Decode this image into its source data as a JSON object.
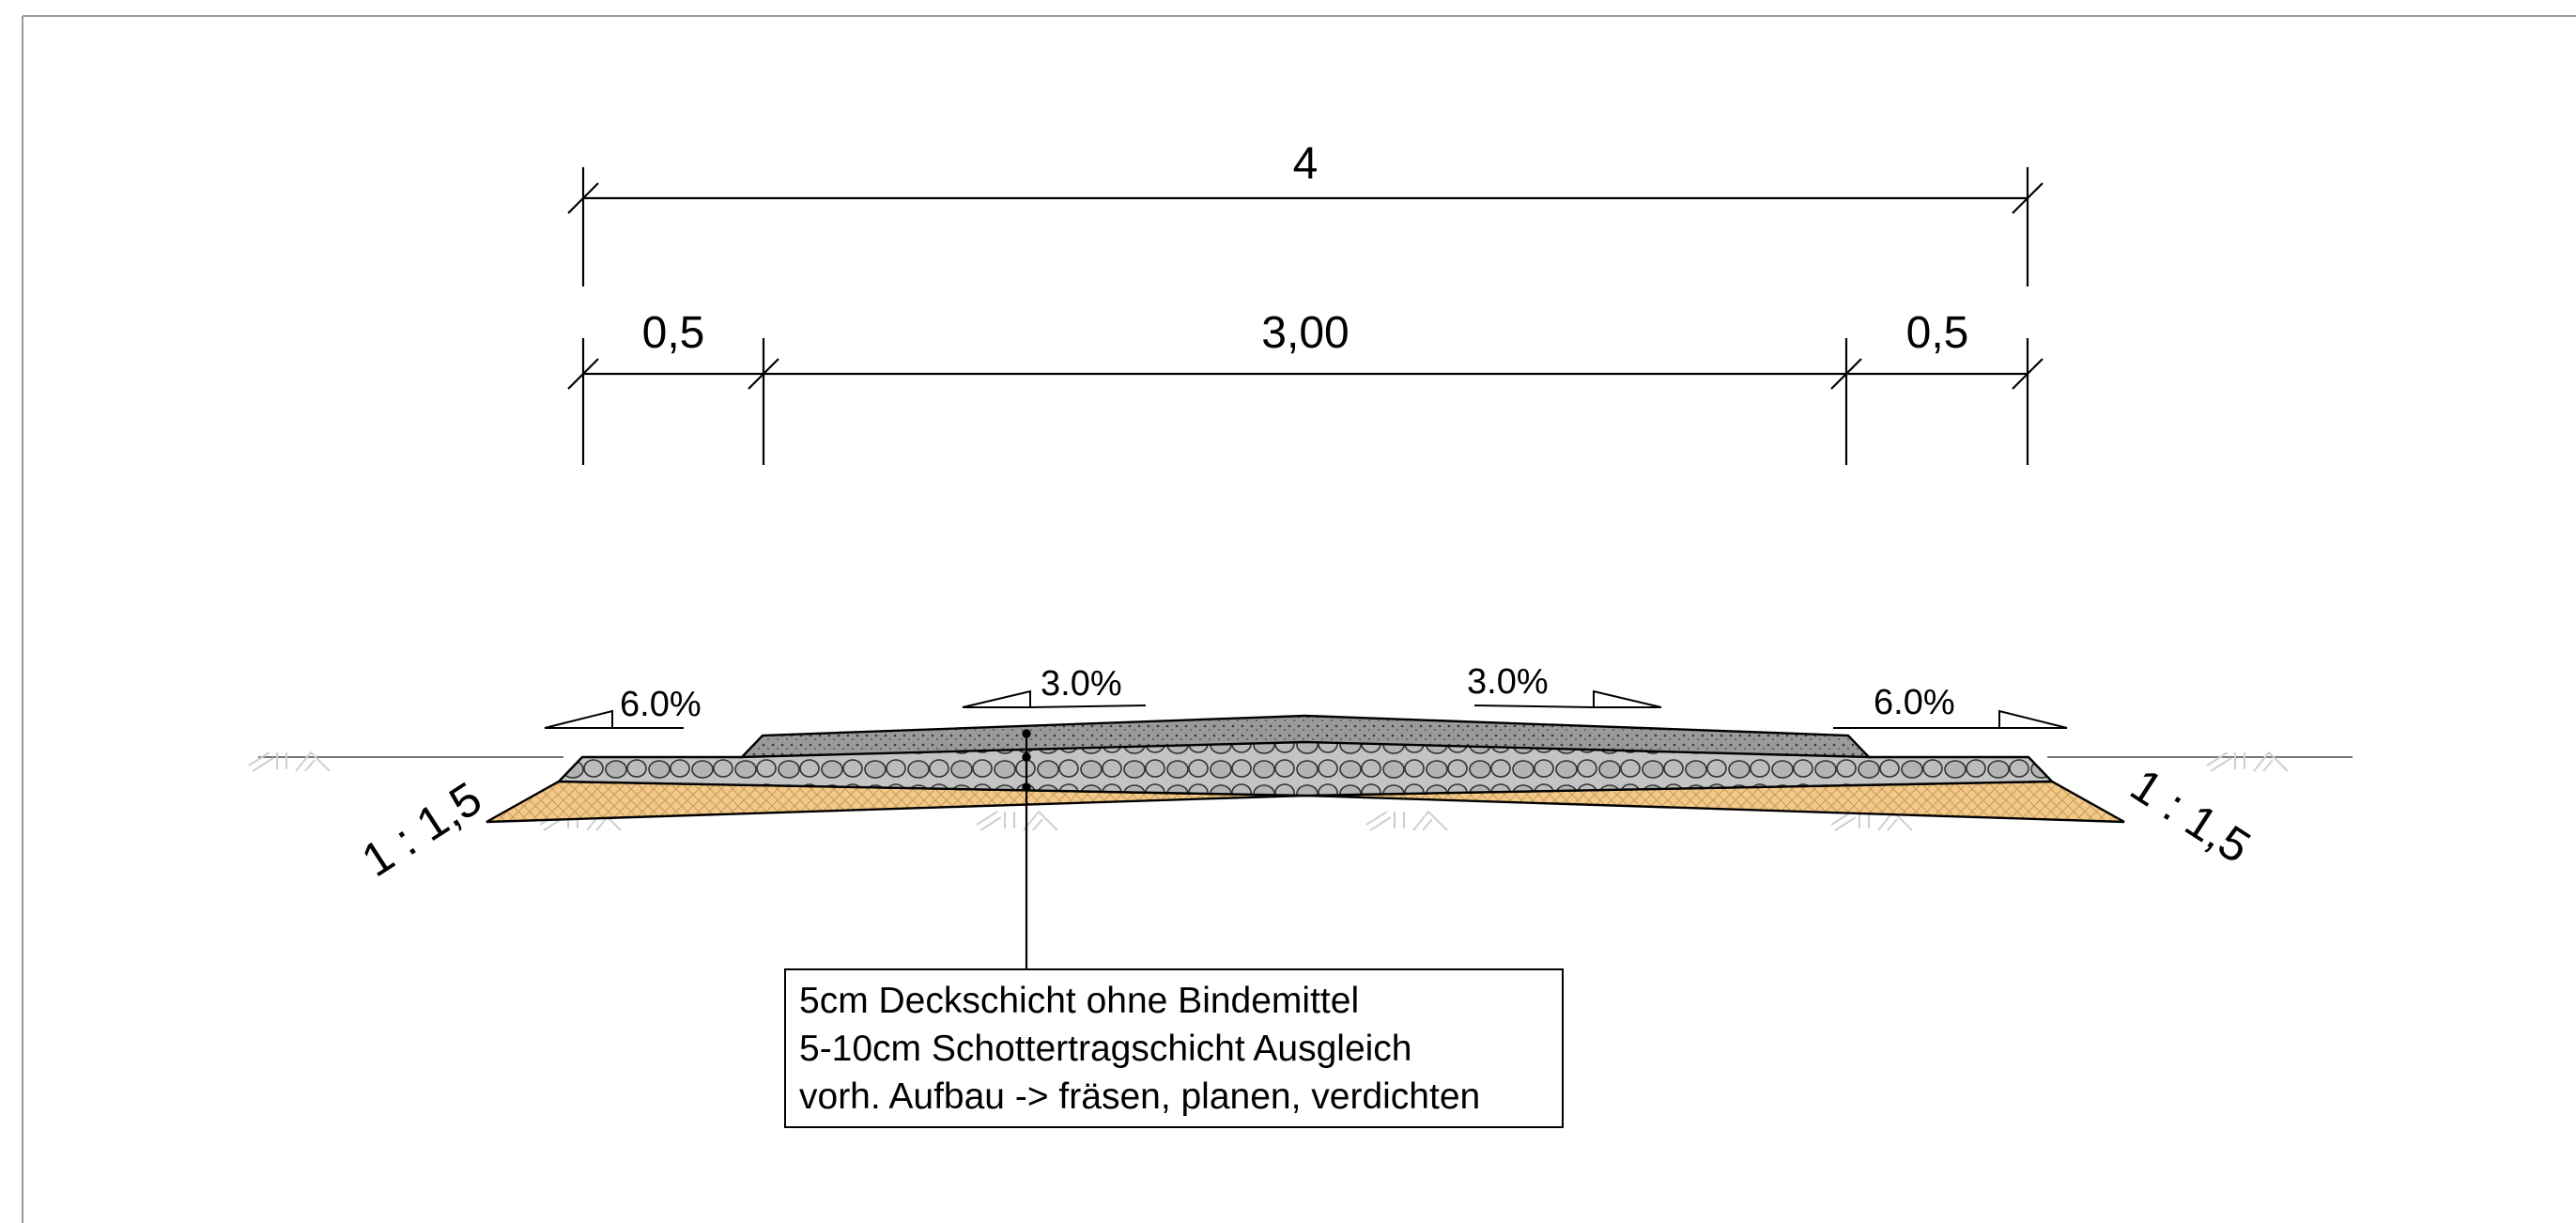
{
  "dimensions": {
    "total": "4",
    "left_shoulder": "0,5",
    "carriageway": "3,00",
    "right_shoulder": "0,5"
  },
  "cross_slopes": {
    "left_shoulder": "6.0%",
    "left_lane": "3.0%",
    "right_lane": "3.0%",
    "right_shoulder": "6.0%"
  },
  "embankment_ratio": {
    "left": "1 : 1,5",
    "right": "1 : 1,5"
  },
  "layer_note": {
    "line1": "5cm Deckschicht ohne Bindemittel",
    "line2": "5-10cm Schottertragschicht Ausgleich",
    "line3": "vorh. Aufbau -> fräsen, planen, verdichten"
  },
  "colors": {
    "sand": "#f2c98a",
    "gravel": "#bfbfbf",
    "surface": "#9a9a9a",
    "soil_hatch": "#cfcfcf"
  }
}
